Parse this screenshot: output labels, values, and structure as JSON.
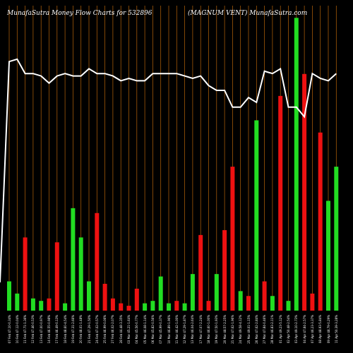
{
  "header": {
    "left_title": "MunafaSutra  Money Flow  Charts for 532896",
    "right_title": "(MAGNUM VENT) MunafaSutra.com"
  },
  "colors": {
    "background": "#000000",
    "grid": "#b8640a",
    "line": "#ffffff",
    "up": "#22dd22",
    "down": "#ee1111"
  },
  "chart_data": {
    "type": "bar",
    "title": "",
    "xlabel": "",
    "ylabel": "",
    "grid": true,
    "categories": [
      "07 Feb 47.10-0.34%",
      "10 Feb 47.12-0.04%",
      "11 Feb 47.71-1.36%",
      "12 Feb 47.46-0.53%",
      "13 Feb 47.00-0.97%",
      "14 Feb 46.55-0.98%",
      "17 Feb 46.49-0.13%",
      "18 Feb 48.60-4.54%",
      "19 Feb 47.31-2.66%",
      "20 Feb 48.01-1.48%",
      "21 Feb 47.29-1.50%",
      "24 Feb 47.02-0.57%",
      "25 Feb 46.99-0.06%",
      "27 Feb 46.02-2.07%",
      "28 Feb 44.48-3.35%",
      "03 Mar 45.21-1.64%",
      "04 Mar 45.56-0.77%",
      "05 Mar 46.08-1.14%",
      "06 Mar 45.82-0.56%",
      "07 Mar 45.99-0.37%",
      "10 Mar 46.89-1.96%",
      "11 Mar 46.42-1.00%",
      "12 Mar 47.29-1.87%",
      "13 Mar 46.04-2.64%",
      "17 Mar 47.07-2.24%",
      "18 Mar 46.60-1.00%",
      "19 Mar 47.50-1.93%",
      "20 Mar 48.57-2.25%",
      "21 Mar 47.62-1.96%",
      "24 Mar 49.58-4.12%",
      "25 Mar 49.01-1.15%",
      "26 Mar 47.62-2.84%",
      "27 Mar 47.84-0.46%",
      "28 Mar 46.83-2.11%",
      "01 Apr 49.23-5.12%",
      "02 Apr 50.48-2.54%",
      "03 Apr 49.10-2.73%",
      "04 Apr 47.84-2.57%",
      "07 Apr 46.23-3.37%",
      "08 Apr 48.93-5.84%",
      "09 Apr 48.79-0.29%",
      "11 Apr 50.39-3.28%"
    ],
    "series": [
      {
        "values": [
          12,
          7,
          30,
          5,
          4,
          5,
          28,
          3,
          42,
          30,
          12,
          40,
          11,
          5,
          3,
          2,
          9,
          3,
          4,
          14,
          3,
          4,
          3,
          15,
          31,
          4,
          15,
          33,
          59,
          8,
          6,
          78,
          12,
          6,
          88,
          4,
          120,
          97,
          7,
          73,
          45,
          59
        ],
        "direction": [
          "up",
          "up",
          "down",
          "up",
          "up",
          "down",
          "down",
          "up",
          "up",
          "up",
          "up",
          "down",
          "down",
          "down",
          "down",
          "down",
          "down",
          "up",
          "up",
          "up",
          "up",
          "down",
          "up",
          "up",
          "down",
          "down",
          "up",
          "down",
          "down",
          "up",
          "down",
          "up",
          "down",
          "up",
          "down",
          "up",
          "up",
          "down",
          "down",
          "down",
          "up",
          "up"
        ]
      },
      {
        "values": [
          92,
          93,
          87,
          87,
          86,
          83,
          86,
          87,
          86,
          86,
          89,
          87,
          87,
          86,
          84,
          85,
          84,
          84,
          87,
          87,
          87,
          87,
          86,
          85,
          86,
          82,
          80,
          80,
          73,
          73,
          77,
          75,
          88,
          87,
          89,
          73,
          73,
          69,
          87,
          85,
          84,
          87
        ]
      }
    ],
    "ylim": [
      0,
      125
    ]
  }
}
